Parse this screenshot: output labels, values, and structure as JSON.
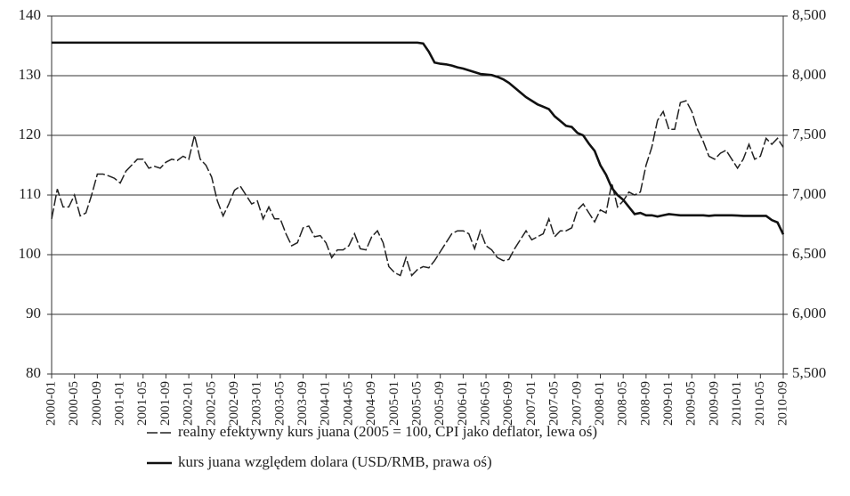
{
  "chart_data": {
    "type": "line",
    "categories": [
      "2000-01",
      null,
      null,
      null,
      "2000-05",
      null,
      null,
      null,
      "2000-09",
      null,
      null,
      null,
      "2001-01",
      null,
      null,
      null,
      "2001-05",
      null,
      null,
      null,
      "2001-09",
      null,
      null,
      null,
      "2002-01",
      null,
      null,
      null,
      "2002-05",
      null,
      null,
      null,
      "2002-09",
      null,
      null,
      null,
      "2003-01",
      null,
      null,
      null,
      "2003-05",
      null,
      null,
      null,
      "2003-09",
      null,
      null,
      null,
      "2004-01",
      null,
      null,
      null,
      "2004-05",
      null,
      null,
      null,
      "2004-09",
      null,
      null,
      null,
      "2005-01",
      null,
      null,
      null,
      "2005-05",
      null,
      null,
      null,
      "2005-09",
      null,
      null,
      null,
      "2006-01",
      null,
      null,
      null,
      "2006-05",
      null,
      null,
      null,
      "2006-09",
      null,
      null,
      null,
      "2007-01",
      null,
      null,
      null,
      "2007-05",
      null,
      null,
      null,
      "2007-09",
      null,
      null,
      null,
      "2008-01",
      null,
      null,
      null,
      "2008-05",
      null,
      null,
      null,
      "2008-09",
      null,
      null,
      null,
      "2009-01",
      null,
      null,
      null,
      "2009-05",
      null,
      null,
      null,
      "2009-09",
      null,
      null,
      null,
      "2010-01",
      null,
      null,
      null,
      "2010-05",
      null,
      null,
      null,
      "2010-09"
    ],
    "series": [
      {
        "name": "realny efektywny kurs juana (2005 = 100, CPI jako deflator, lewa oś)",
        "color": "#222222",
        "style": "dashed",
        "values": [
          106,
          111,
          108,
          108,
          110,
          106.5,
          107,
          110,
          113.5,
          113.5,
          113.2,
          112.8,
          112,
          114,
          115,
          116,
          116,
          114.5,
          114.8,
          114.5,
          115.5,
          116,
          115.8,
          116.5,
          116,
          120,
          116,
          115,
          113,
          109,
          106.5,
          108.5,
          110.8,
          111.5,
          110,
          108.5,
          109,
          106,
          108,
          106,
          106,
          103.5,
          101.5,
          102,
          104.5,
          104.8,
          103,
          103.2,
          102,
          99.5,
          100.8,
          100.8,
          101.5,
          103.5,
          101,
          100.8,
          103,
          104,
          102,
          98,
          97,
          96.5,
          99.5,
          96.5,
          97.5,
          98,
          97.8,
          99,
          100.5,
          102,
          103.5,
          104,
          104,
          103.5,
          101,
          104,
          101.5,
          100.8,
          99.5,
          99,
          99.2,
          101,
          102.5,
          104,
          102.5,
          103,
          103.5,
          106,
          103,
          104,
          104,
          104.5,
          107.5,
          108.5,
          107,
          105.5,
          107.5,
          107,
          112,
          108,
          109,
          110.5,
          110,
          110.5,
          115,
          118,
          122.5,
          124,
          121,
          121,
          125.5,
          125.8,
          124,
          121,
          119,
          116.5,
          116,
          117,
          117.5,
          116,
          114.5,
          116,
          118.5,
          116,
          116.5,
          119.5,
          118.5,
          119.5,
          118
        ]
      },
      {
        "name": "kurs juana względem dolara (USD/RMB, prawa oś)",
        "color": "#111111",
        "style": "solid",
        "axis": "y2",
        "values": [
          8277,
          8277,
          8277,
          8277,
          8277,
          8277,
          8277,
          8277,
          8277,
          8277,
          8277,
          8277,
          8277,
          8277,
          8277,
          8277,
          8277,
          8277,
          8277,
          8277,
          8277,
          8277,
          8277,
          8277,
          8277,
          8277,
          8277,
          8277,
          8277,
          8277,
          8277,
          8277,
          8277,
          8277,
          8277,
          8277,
          8277,
          8277,
          8277,
          8277,
          8277,
          8277,
          8277,
          8277,
          8277,
          8277,
          8277,
          8277,
          8277,
          8277,
          8277,
          8277,
          8277,
          8277,
          8277,
          8277,
          8277,
          8277,
          8277,
          8277,
          8277,
          8277,
          8277,
          8277,
          8277,
          8270,
          8200,
          8110,
          8100,
          8095,
          8085,
          8070,
          8060,
          8045,
          8030,
          8015,
          8010,
          8005,
          7990,
          7970,
          7940,
          7900,
          7860,
          7820,
          7790,
          7760,
          7740,
          7720,
          7660,
          7620,
          7580,
          7570,
          7520,
          7500,
          7430,
          7370,
          7250,
          7170,
          7060,
          7000,
          6960,
          6900,
          6840,
          6850,
          6830,
          6830,
          6820,
          6830,
          6840,
          6835,
          6830,
          6830,
          6830,
          6830,
          6830,
          6825,
          6830,
          6830,
          6830,
          6830,
          6828,
          6825,
          6825,
          6825,
          6825,
          6825,
          6790,
          6770,
          6670
        ]
      }
    ],
    "ylim": [
      80,
      140
    ],
    "yticks": [
      80,
      90,
      100,
      110,
      120,
      130,
      140
    ],
    "y2lim": [
      5500,
      8500
    ],
    "y2ticks": [
      {
        "value": 5500,
        "label": "5,500"
      },
      {
        "value": 6000,
        "label": "6,000"
      },
      {
        "value": 6500,
        "label": "6,500"
      },
      {
        "value": 7000,
        "label": "7,000"
      },
      {
        "value": 7500,
        "label": "7,500"
      },
      {
        "value": 8000,
        "label": "8,000"
      },
      {
        "value": 8500,
        "label": "8,500"
      }
    ],
    "grid": true
  }
}
